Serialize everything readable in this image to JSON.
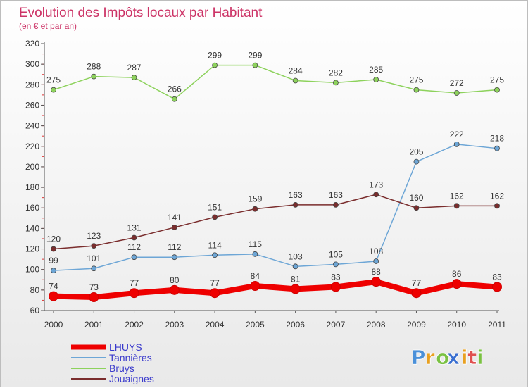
{
  "chart_data": {
    "type": "line",
    "title": "Evolution des Impôts locaux par Habitant",
    "subtitle": "(en € et par an)",
    "xlabel": "",
    "ylabel": "",
    "ylim": [
      60,
      320
    ],
    "yticks": [
      60,
      80,
      100,
      120,
      140,
      160,
      180,
      200,
      220,
      240,
      260,
      280,
      300,
      320
    ],
    "grid": false,
    "legend_position": "bottom-left",
    "categories": [
      "2000",
      "2001",
      "2002",
      "2003",
      "2004",
      "2005",
      "2006",
      "2007",
      "2008",
      "2009",
      "2010",
      "2011"
    ],
    "series": [
      {
        "name": "Bruys",
        "color": "#8dd25c",
        "values": [
          275,
          288,
          287,
          266,
          299,
          299,
          284,
          282,
          285,
          275,
          272,
          275
        ]
      },
      {
        "name": "Tannières",
        "color": "#6da6d6",
        "values": [
          99,
          101,
          112,
          112,
          114,
          115,
          103,
          105,
          108,
          205,
          222,
          218
        ]
      },
      {
        "name": "Jouaignes",
        "color": "#7a2d2d",
        "values": [
          120,
          123,
          131,
          141,
          151,
          159,
          163,
          163,
          173,
          160,
          162,
          162
        ]
      },
      {
        "name": "LHUYS",
        "color": "#ee0000",
        "values": [
          74,
          73,
          77,
          80,
          77,
          84,
          81,
          83,
          88,
          77,
          86,
          83
        ]
      }
    ],
    "legend": [
      {
        "name": "LHUYS",
        "color": "#ee0000"
      },
      {
        "name": "Tannières",
        "color": "#6da6d6"
      },
      {
        "name": "Bruys",
        "color": "#8dd25c"
      },
      {
        "name": "Jouaignes",
        "color": "#7a2d2d"
      }
    ]
  },
  "branding": {
    "logo_letters": [
      "P",
      "r",
      "o",
      "x",
      "i",
      "t",
      "i"
    ],
    "logo_colors": [
      "#4a90d9",
      "#e8a020",
      "#7ac142",
      "#3a6fd0",
      "#e8a020",
      "#e05050",
      "#7ac142"
    ]
  }
}
